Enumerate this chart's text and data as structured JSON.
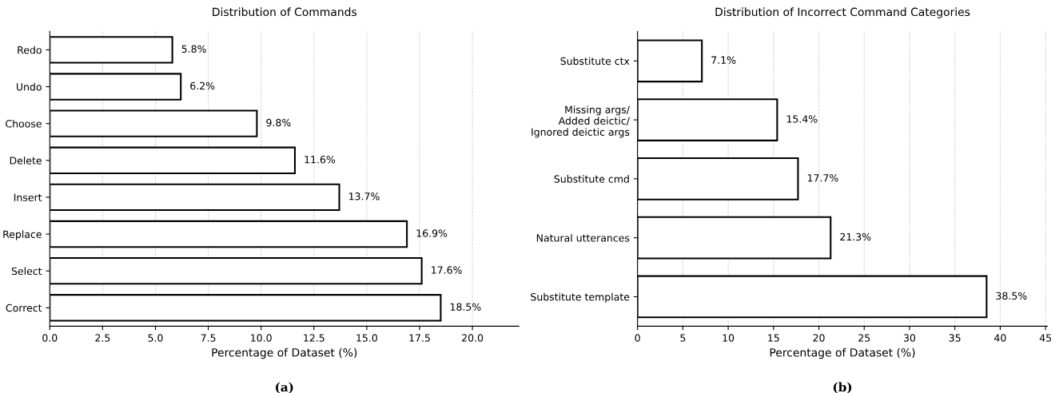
{
  "chart_data": [
    {
      "type": "bar",
      "orientation": "horizontal",
      "title": "Distribution of Commands",
      "xlabel": "Percentage of Dataset (%)",
      "categories": [
        "Redo",
        "Undo",
        "Choose",
        "Delete",
        "Insert",
        "Replace",
        "Select",
        "Correct"
      ],
      "series": [
        {
          "color": "#ffffff",
          "values": [
            5.8,
            6.2,
            9.8,
            11.6,
            13.7,
            16.9,
            17.6,
            18.5
          ]
        }
      ],
      "value_labels": [
        "5.8%",
        "6.2%",
        "9.8%",
        "11.6%",
        "13.7%",
        "16.9%",
        "17.6%",
        "18.5%"
      ],
      "xlim": [
        0,
        22.2
      ],
      "xticks": [
        {
          "value": 0,
          "label": "0.0"
        },
        {
          "value": 2.5,
          "label": "2.5"
        },
        {
          "value": 5,
          "label": "5.0"
        },
        {
          "value": 7.5,
          "label": "7.5"
        },
        {
          "value": 10,
          "label": "10.0"
        },
        {
          "value": 12.5,
          "label": "12.5"
        },
        {
          "value": 15,
          "label": "15.0"
        },
        {
          "value": 17.5,
          "label": "17.5"
        },
        {
          "value": 20,
          "label": "20.0"
        }
      ],
      "grid": "x",
      "annotations": [
        "(a)"
      ]
    },
    {
      "type": "bar",
      "orientation": "horizontal",
      "title": "Distribution of Incorrect Command Categories",
      "xlabel": "Percentage of Dataset (%)",
      "categories": [
        "Substitute ctx",
        "Missing args/\nAdded deictic/\nIgnored deictic args",
        "Substitute cmd",
        "Natural utterances",
        "Substitute template"
      ],
      "series": [
        {
          "color": "#ffffff",
          "values": [
            7.1,
            15.4,
            17.7,
            21.3,
            38.5
          ]
        }
      ],
      "value_labels": [
        "7.1%",
        "15.4%",
        "17.7%",
        "21.3%",
        "38.5%"
      ],
      "xlim": [
        0,
        45.2
      ],
      "xticks": [
        0,
        5,
        10,
        15,
        20,
        25,
        30,
        35,
        40,
        45
      ],
      "grid": "x",
      "annotations": [
        "(b)"
      ]
    }
  ]
}
